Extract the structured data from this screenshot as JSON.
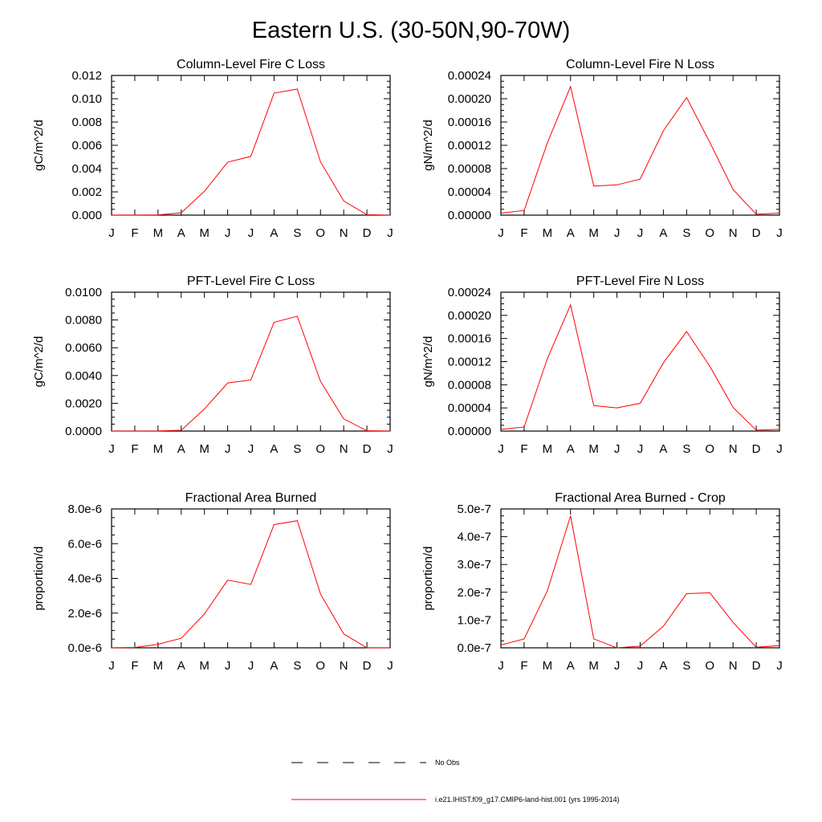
{
  "title": "Eastern U.S. (30-50N,90-70W)",
  "chart_data": [
    {
      "type": "line",
      "title": "Column-Level Fire C Loss",
      "ylabel": "gC/m^2/d",
      "categories": [
        "J",
        "F",
        "M",
        "A",
        "M",
        "J",
        "J",
        "A",
        "S",
        "O",
        "N",
        "D",
        "J"
      ],
      "ylim": [
        0,
        0.012
      ],
      "yticks": [
        "0.000",
        "0.002",
        "0.004",
        "0.006",
        "0.008",
        "0.010",
        "0.012"
      ],
      "yticks_values": [
        0,
        0.002,
        0.004,
        0.006,
        0.008,
        0.01,
        0.012
      ],
      "series": [
        {
          "values": [
            0,
            0,
            2e-05,
            0.0002,
            0.00205,
            0.00455,
            0.00505,
            0.01048,
            0.01083,
            0.00458,
            0.00122,
            3e-05,
            0.0
          ],
          "color": "#ff0000"
        }
      ],
      "grid": false
    },
    {
      "type": "line",
      "title": "Column-Level Fire N Loss",
      "ylabel": "gN/m^2/d",
      "categories": [
        "J",
        "F",
        "M",
        "A",
        "M",
        "J",
        "J",
        "A",
        "S",
        "O",
        "N",
        "D",
        "J"
      ],
      "ylim": [
        0,
        0.00024
      ],
      "yticks": [
        "0.00000",
        "0.00004",
        "0.00008",
        "0.00012",
        "0.00016",
        "0.00020",
        "0.00024"
      ],
      "yticks_values": [
        0,
        4e-05,
        8e-05,
        0.00012,
        0.00016,
        0.0002,
        0.00024
      ],
      "series": [
        {
          "values": [
            3.5e-06,
            8e-06,
            0.000124,
            0.000221,
            5e-05,
            5.2e-05,
            6.2e-05,
            0.000145,
            0.000202,
            0.000125,
            4.4e-05,
            1.5e-06,
            3.5e-06
          ],
          "color": "#ff0000"
        }
      ],
      "grid": false
    },
    {
      "type": "line",
      "title": "PFT-Level Fire C Loss",
      "ylabel": "gC/m^2/d",
      "categories": [
        "J",
        "F",
        "M",
        "A",
        "M",
        "J",
        "J",
        "A",
        "S",
        "O",
        "N",
        "D",
        "J"
      ],
      "ylim": [
        0,
        0.01
      ],
      "yticks": [
        "0.0000",
        "0.0020",
        "0.0040",
        "0.0060",
        "0.0080",
        "0.0100"
      ],
      "yticks_values": [
        0,
        0.002,
        0.004,
        0.006,
        0.008,
        0.01
      ],
      "series": [
        {
          "values": [
            0,
            0,
            1e-05,
            6e-05,
            0.00159,
            0.00346,
            0.00368,
            0.00783,
            0.00827,
            0.00358,
            0.00088,
            2e-05,
            0.0
          ],
          "color": "#ff0000"
        }
      ],
      "grid": false
    },
    {
      "type": "line",
      "title": "PFT-Level Fire N Loss",
      "ylabel": "gN/m^2/d",
      "categories": [
        "J",
        "F",
        "M",
        "A",
        "M",
        "J",
        "J",
        "A",
        "S",
        "O",
        "N",
        "D",
        "J"
      ],
      "ylim": [
        0,
        0.00024
      ],
      "yticks": [
        "0.00000",
        "0.00004",
        "0.00008",
        "0.00012",
        "0.00016",
        "0.00020",
        "0.00024"
      ],
      "yticks_values": [
        0,
        4e-05,
        8e-05,
        0.00012,
        0.00016,
        0.0002,
        0.00024
      ],
      "series": [
        {
          "values": [
            3e-06,
            7e-06,
            0.000125,
            0.000218,
            4.4e-05,
            4e-05,
            4.8e-05,
            0.000118,
            0.000172,
            0.000112,
            4.1e-05,
            1.5e-06,
            3e-06
          ],
          "color": "#ff0000"
        }
      ],
      "grid": false
    },
    {
      "type": "line",
      "title": "Fractional Area Burned",
      "ylabel": "proportion/d",
      "categories": [
        "J",
        "F",
        "M",
        "A",
        "M",
        "J",
        "J",
        "A",
        "S",
        "O",
        "N",
        "D",
        "J"
      ],
      "ylim": [
        0,
        8e-06
      ],
      "yticks": [
        "0.0e-6",
        "2.0e-6",
        "4.0e-6",
        "6.0e-6",
        "8.0e-6"
      ],
      "yticks_values": [
        0,
        2e-06,
        4e-06,
        6e-06,
        8e-06
      ],
      "series": [
        {
          "values": [
            0.0,
            2e-08,
            2e-07,
            5.5e-07,
            1.95e-06,
            3.9e-06,
            3.65e-06,
            7.1e-06,
            7.32e-06,
            3.1e-06,
            8e-07,
            0.0,
            0.0
          ],
          "color": "#ff0000"
        }
      ],
      "grid": false
    },
    {
      "type": "line",
      "title": "Fractional Area Burned - Crop",
      "ylabel": "proportion/d",
      "categories": [
        "J",
        "F",
        "M",
        "A",
        "M",
        "J",
        "J",
        "A",
        "S",
        "O",
        "N",
        "D",
        "J"
      ],
      "ylim": [
        0,
        5e-07
      ],
      "yticks": [
        "0.0e-7",
        "1.0e-7",
        "2.0e-7",
        "3.0e-7",
        "4.0e-7",
        "5.0e-7"
      ],
      "yticks_values": [
        0,
        1e-07,
        2e-07,
        3e-07,
        4e-07,
        5e-07
      ],
      "series": [
        {
          "values": [
            1e-08,
            3.2e-08,
            2.05e-07,
            4.75e-07,
            3.2e-08,
            0.0,
            6e-09,
            7.8e-08,
            1.95e-07,
            1.98e-07,
            9.2e-08,
            2e-09,
            8e-09
          ],
          "color": "#ff0000"
        }
      ],
      "grid": false
    }
  ],
  "legend": [
    {
      "label": "No Obs",
      "style": "dashed",
      "color": "#000000"
    },
    {
      "label": "i.e21.IHIST.f09_g17.CMIP6-land-hist.001 (yrs 1995-2014)",
      "style": "solid",
      "color": "#ff0000"
    }
  ]
}
